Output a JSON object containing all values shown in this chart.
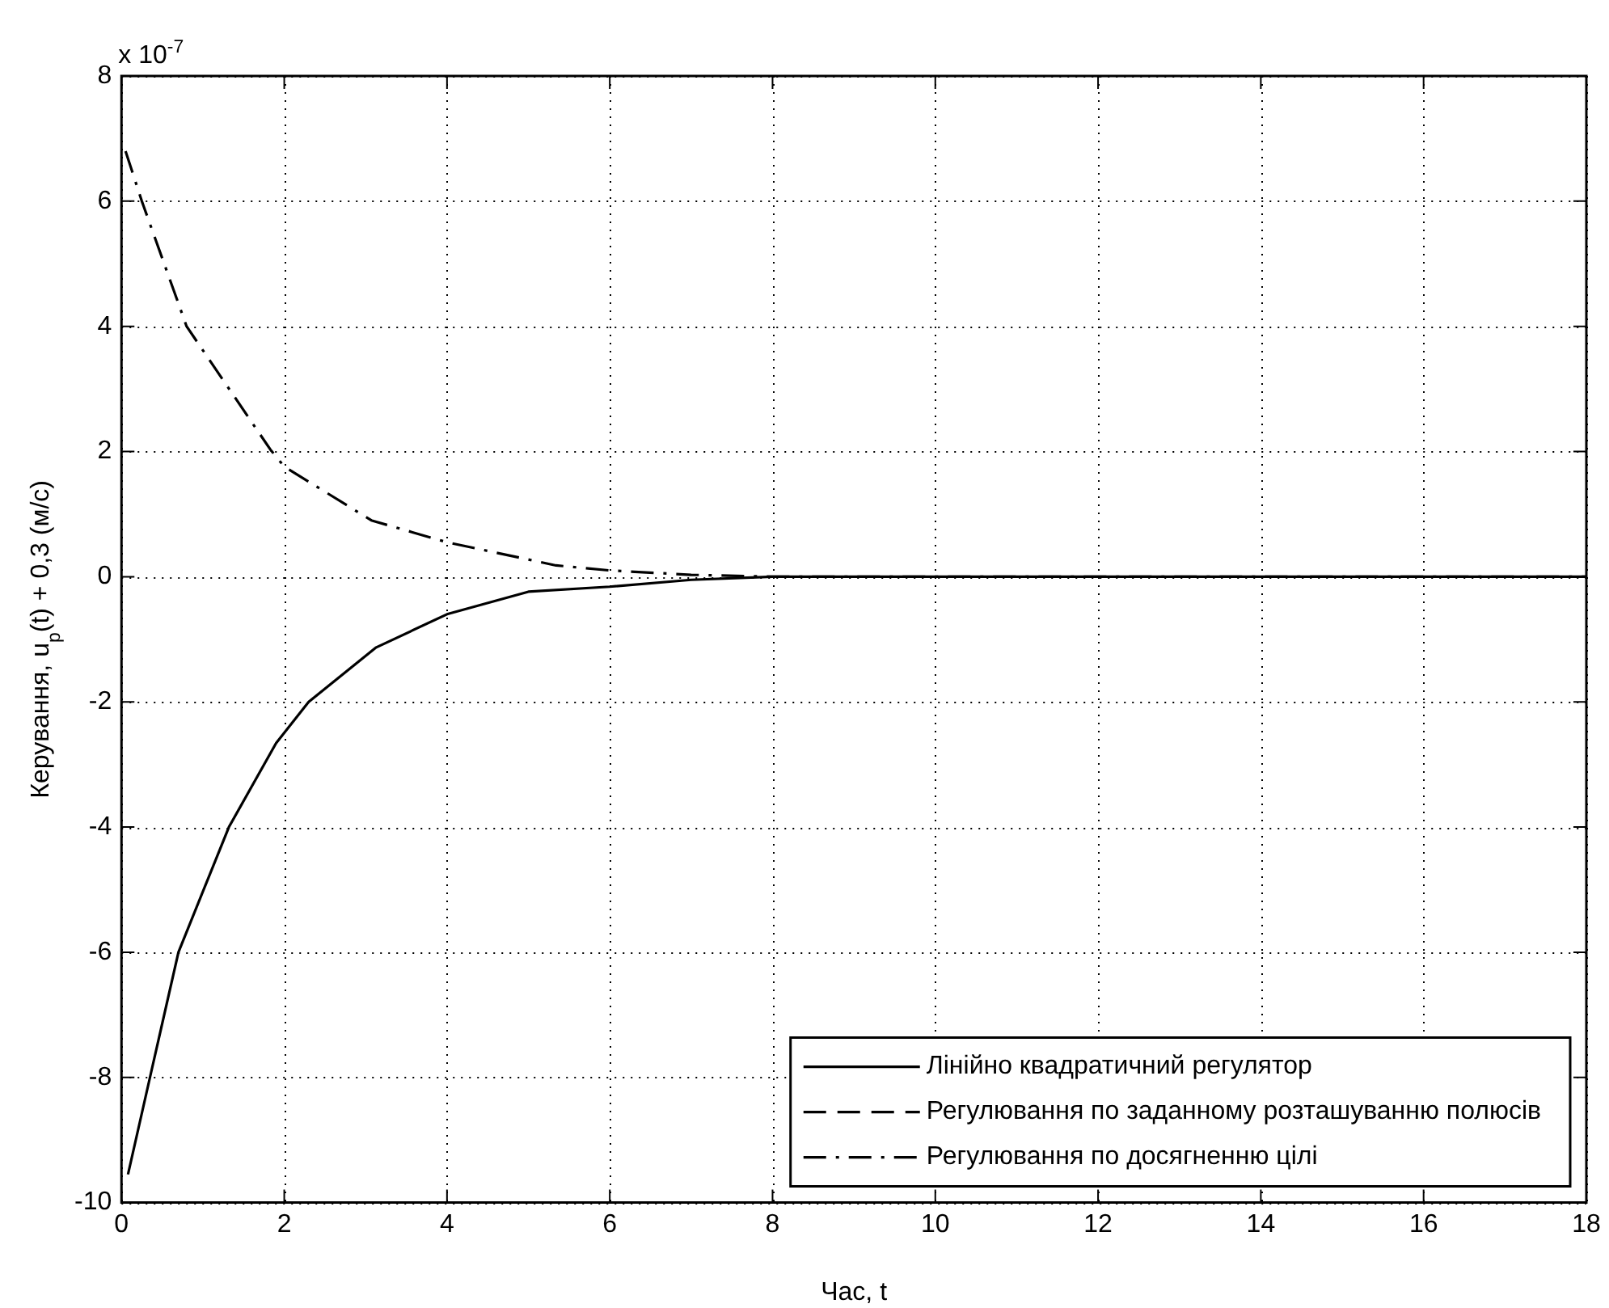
{
  "chart_data": {
    "type": "line",
    "xlabel": "Час, t",
    "ylabel": "Керування, u$_{p}$(t) + 0,3 (м/с)",
    "annotations": [
      "x 10$^{-7}$"
    ],
    "xlim": [
      0,
      18
    ],
    "xticks": [
      0,
      2,
      4,
      6,
      8,
      10,
      12,
      14,
      16,
      18
    ],
    "ylim": [
      -10,
      8
    ],
    "yticks": [
      -10,
      -8,
      -6,
      -4,
      -2,
      0,
      2,
      4,
      6,
      8
    ],
    "grid": true,
    "legend": "bottom right",
    "marker": "none",
    "series": [
      {
        "name": "Лінійно квадратичний регулятор",
        "color": "#000000",
        "line_style": "solid",
        "x": [
          0.08,
          0.35,
          0.7,
          1.32,
          1.9,
          2.3,
          3.13,
          4,
          5,
          6,
          7,
          8,
          10,
          12,
          14,
          16,
          18
        ],
        "values": [
          -9.55,
          -8,
          -6,
          -4,
          -2.66,
          -2,
          -1.13,
          -0.6,
          -0.24,
          -0.16,
          -0.05,
          0,
          0,
          0,
          0,
          0,
          0
        ]
      },
      {
        "name": "Регулювання по заданному розташуванню полюсів",
        "color": "#000000",
        "line_style": "dashed"
      },
      {
        "name": "Регулювання по досягненню цілі",
        "color": "#000000",
        "line_style": "dashdot",
        "x": [
          0.05,
          0.25,
          0.8,
          1.83,
          2,
          3.07,
          4,
          5.34,
          6,
          7,
          8,
          10,
          12,
          14,
          16,
          18
        ],
        "values": [
          6.8,
          6,
          4,
          2.03,
          1.76,
          0.9,
          0.55,
          0.18,
          0.1,
          0.03,
          0,
          0,
          0,
          0,
          0,
          0
        ]
      }
    ]
  }
}
